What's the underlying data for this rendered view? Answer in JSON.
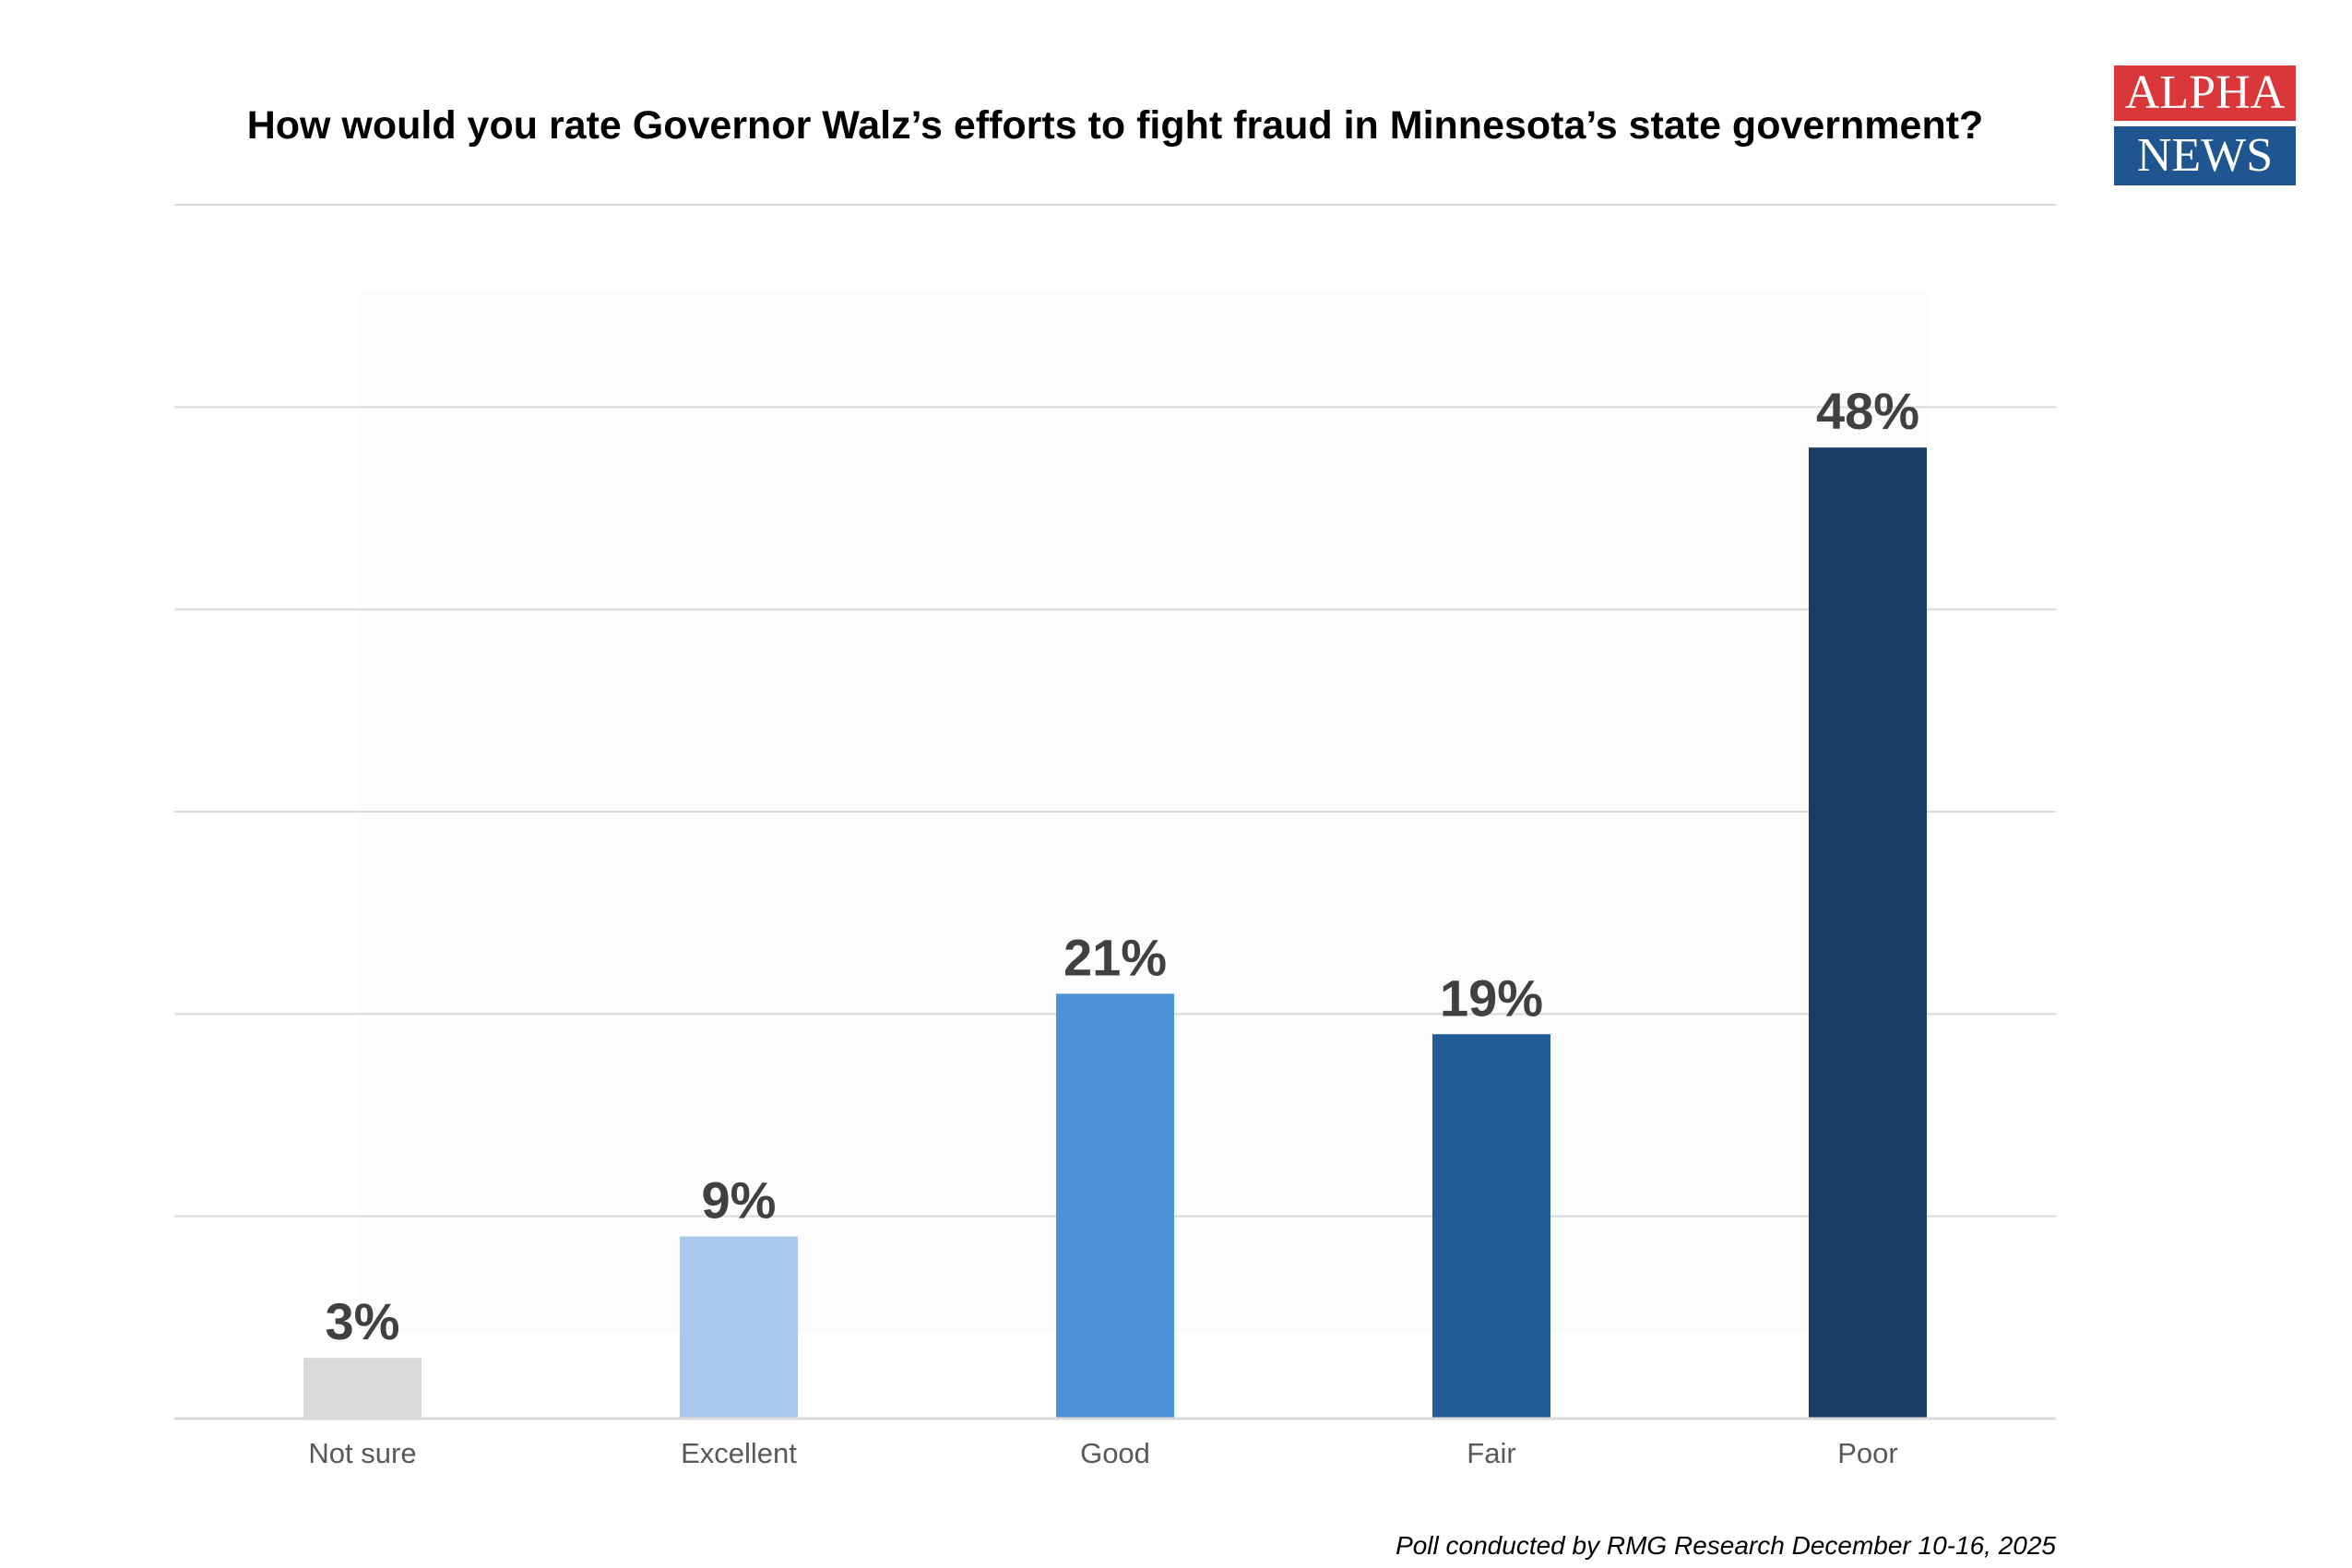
{
  "logo": {
    "top": "ALPHA",
    "bottom": "NEWS"
  },
  "watermark": {
    "line1": "ALPHA",
    "line2": "NEWS"
  },
  "footer": "Poll conducted by RMG Research December 10-16, 2025",
  "chart_data": {
    "type": "bar",
    "title": "How would you rate Governor Walz’s efforts to fight fraud in Minnesota’s state government?",
    "categories": [
      "Not sure",
      "Excellent",
      "Good",
      "Fair",
      "Poor"
    ],
    "values": [
      3,
      9,
      21,
      19,
      48
    ],
    "data_labels": [
      "3%",
      "9%",
      "21%",
      "19%",
      "48%"
    ],
    "colors": [
      "#d9d9d9",
      "#a9c9ec",
      "#4e92d9",
      "#215c99",
      "#183d66"
    ],
    "ylim": [
      0,
      60
    ],
    "grid": true,
    "xlabel": "",
    "ylabel": ""
  }
}
